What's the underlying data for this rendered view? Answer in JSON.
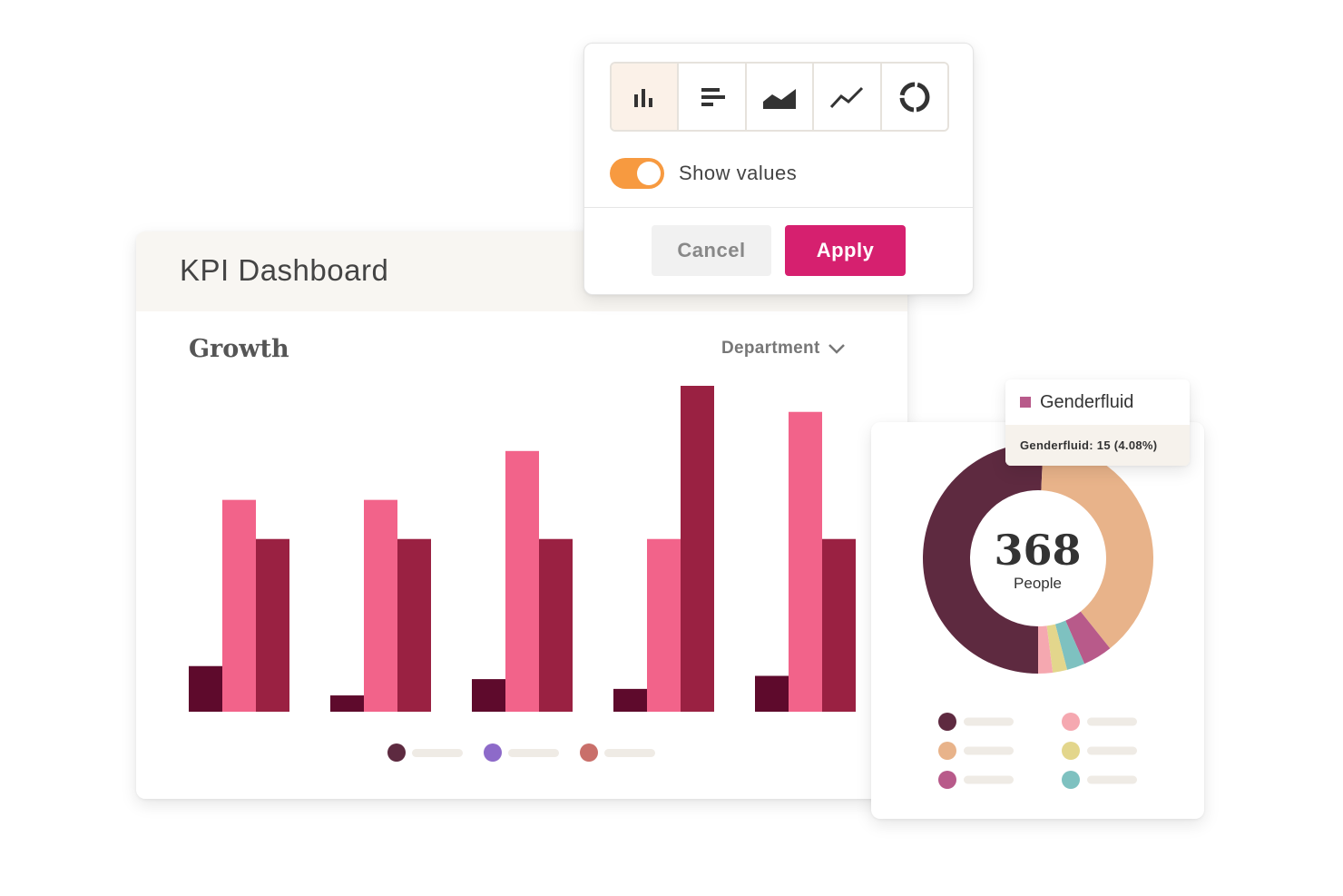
{
  "dashboard": {
    "title": "KPI Dashboard",
    "panel_title": "Growth",
    "dropdown_label": "Department"
  },
  "popover": {
    "chart_types": [
      {
        "name": "column",
        "icon": "bar-chart-icon",
        "active": true
      },
      {
        "name": "horizontal bar",
        "icon": "horizontal-bar-icon",
        "active": false
      },
      {
        "name": "area",
        "icon": "area-chart-icon",
        "active": false
      },
      {
        "name": "line",
        "icon": "line-chart-icon",
        "active": false
      },
      {
        "name": "donut",
        "icon": "donut-chart-icon",
        "active": false
      }
    ],
    "toggle_label": "Show values",
    "toggle_on": true,
    "cancel_label": "Cancel",
    "apply_label": "Apply"
  },
  "colors": {
    "bar_series": [
      "#5e0a2c",
      "#f2638a",
      "#9a2142"
    ],
    "legend_dots": [
      "#5d2a40",
      "#8d6ac9",
      "#c96f6a"
    ],
    "toggle": "#f79a40",
    "apply": "#d6206f",
    "donut_legend_dots": [
      "#5e2a40",
      "#f5a8b0",
      "#e8b38a",
      "#e3d68c",
      "#b85a8a",
      "#7ec1c0"
    ]
  },
  "chart_data": [
    {
      "type": "bar",
      "title": "Growth",
      "categories": [
        "",
        "",
        "",
        "",
        ""
      ],
      "series": [
        {
          "values": [
            14,
            5,
            10,
            7,
            11
          ]
        },
        {
          "values": [
            65,
            65,
            80,
            53,
            92
          ]
        },
        {
          "values": [
            53,
            53,
            53,
            100,
            53
          ]
        }
      ],
      "ylim": [
        0,
        100
      ],
      "grid": false,
      "legend": "bottom-center"
    },
    {
      "type": "pie",
      "center_value": "368",
      "center_label": "People",
      "slices": [
        {
          "value": 50,
          "color": "#5e2a40"
        },
        {
          "value": 38,
          "color": "#e8b38a"
        },
        {
          "value": 4.08,
          "color": "#b85a8a"
        },
        {
          "value": 2.5,
          "color": "#7ec1c0"
        },
        {
          "value": 2,
          "color": "#e3d68c"
        },
        {
          "value": 2,
          "color": "#f5a8b0"
        }
      ],
      "tooltip": {
        "name": "Genderfluid",
        "value": "Genderfluid: 15 (4.08%)"
      }
    }
  ]
}
